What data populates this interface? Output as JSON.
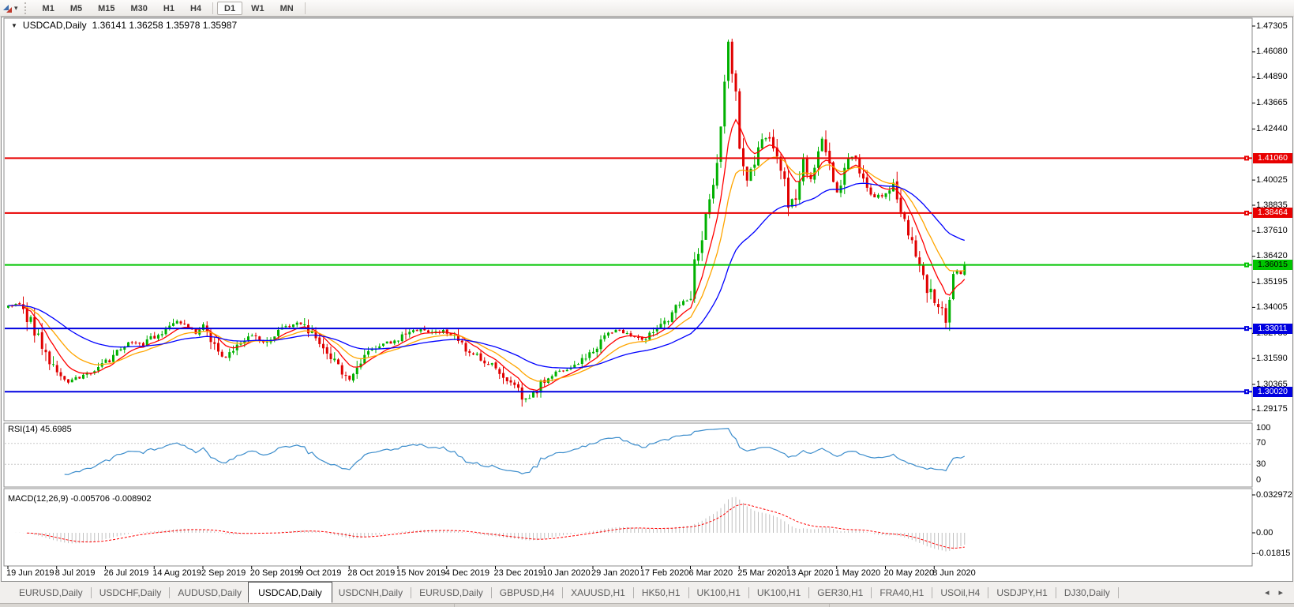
{
  "toolbar": {
    "dropdown_caret": "▾",
    "timeframes": [
      "M1",
      "M5",
      "M15",
      "M30",
      "H1",
      "H4",
      "D1",
      "W1",
      "MN"
    ],
    "active_timeframe": "D1",
    "separators_after": [
      "H4",
      "MN"
    ]
  },
  "chart": {
    "menu_icon": "▼",
    "header_symbol": "USDCAD,Daily",
    "header_ohlc": "1.36141 1.36258 1.35978 1.35987"
  },
  "chart_data": {
    "type": "candlestick",
    "symbol": "USDCAD",
    "period": "Daily",
    "ohlc": {
      "open": 1.36141,
      "high": 1.36258,
      "low": 1.35978,
      "close": 1.35987
    },
    "price_axis": {
      "ticks": [
        "1.47305",
        "1.46080",
        "1.44890",
        "1.43665",
        "1.42440",
        "1.40025",
        "1.38835",
        "1.37610",
        "1.36420",
        "1.35195",
        "1.34005",
        "1.32780",
        "1.31590",
        "1.30365",
        "1.29175"
      ]
    },
    "levels": [
      {
        "price": 1.4106,
        "label": "1.41060",
        "color": "#e80000",
        "text_color": "#ffffff"
      },
      {
        "price": 1.38464,
        "label": "1.38464",
        "color": "#e80000",
        "text_color": "#ffffff"
      },
      {
        "price": 1.36015,
        "label": "1.36015",
        "color": "#00c400",
        "text_color": "#000000"
      },
      {
        "price": 1.33011,
        "label": "1.33011",
        "color": "#0000e0",
        "text_color": "#ffffff"
      },
      {
        "price": 1.3002,
        "label": "1.30020",
        "color": "#0000e0",
        "text_color": "#ffffff"
      }
    ],
    "date_labels": [
      "19 Jun 2019",
      "8 Jul 2019",
      "26 Jul 2019",
      "14 Aug 2019",
      "2 Sep 2019",
      "20 Sep 2019",
      "9 Oct 2019",
      "28 Oct 2019",
      "15 Nov 2019",
      "4 Dec 2019",
      "23 Dec 2019",
      "10 Jan 2020",
      "29 Jan 2020",
      "17 Feb 2020",
      "6 Mar 2020",
      "25 Mar 2020",
      "13 Apr 2020",
      "1 May 2020",
      "20 May 2020",
      "8 Jun 2020"
    ],
    "candles_per_label": 13,
    "candle_count": 256,
    "close_path": [
      [
        0,
        1.3405
      ],
      [
        3,
        1.3425
      ],
      [
        6,
        1.333
      ],
      [
        10,
        1.317
      ],
      [
        13,
        1.3085
      ],
      [
        16,
        1.3048
      ],
      [
        19,
        1.307
      ],
      [
        23,
        1.3105
      ],
      [
        26,
        1.314
      ],
      [
        29,
        1.3205
      ],
      [
        32,
        1.3235
      ],
      [
        36,
        1.322
      ],
      [
        39,
        1.3265
      ],
      [
        42,
        1.329
      ],
      [
        45,
        1.333
      ],
      [
        48,
        1.33
      ],
      [
        50,
        1.327
      ],
      [
        52,
        1.332
      ],
      [
        55,
        1.323
      ],
      [
        58,
        1.3165
      ],
      [
        61,
        1.3215
      ],
      [
        65,
        1.3265
      ],
      [
        68,
        1.323
      ],
      [
        71,
        1.327
      ],
      [
        74,
        1.3305
      ],
      [
        78,
        1.333
      ],
      [
        81,
        1.327
      ],
      [
        84,
        1.321
      ],
      [
        87,
        1.314
      ],
      [
        91,
        1.306
      ],
      [
        94,
        1.313
      ],
      [
        97,
        1.32
      ],
      [
        100,
        1.323
      ],
      [
        104,
        1.324
      ],
      [
        107,
        1.329
      ],
      [
        110,
        1.33
      ],
      [
        113,
        1.328
      ],
      [
        116,
        1.329
      ],
      [
        119,
        1.327
      ],
      [
        122,
        1.32
      ],
      [
        125,
        1.317
      ],
      [
        128,
        1.3135
      ],
      [
        130,
        1.312
      ],
      [
        133,
        1.306
      ],
      [
        136,
        1.301
      ],
      [
        138,
        1.2965
      ],
      [
        141,
        1.301
      ],
      [
        143,
        1.3055
      ],
      [
        146,
        1.309
      ],
      [
        149,
        1.3105
      ],
      [
        152,
        1.314
      ],
      [
        156,
        1.32
      ],
      [
        159,
        1.327
      ],
      [
        162,
        1.329
      ],
      [
        165,
        1.328
      ],
      [
        169,
        1.3245
      ],
      [
        172,
        1.328
      ],
      [
        175,
        1.333
      ],
      [
        178,
        1.34
      ],
      [
        180,
        1.343
      ],
      [
        182,
        1.342
      ],
      [
        183,
        1.36
      ],
      [
        185,
        1.374
      ],
      [
        187,
        1.389
      ],
      [
        188,
        1.398
      ],
      [
        190,
        1.424
      ],
      [
        191,
        1.445
      ],
      [
        192,
        1.463
      ],
      [
        193,
        1.452
      ],
      [
        194,
        1.444
      ],
      [
        195,
        1.418
      ],
      [
        197,
        1.402
      ],
      [
        199,
        1.408
      ],
      [
        201,
        1.42
      ],
      [
        203,
        1.418
      ],
      [
        205,
        1.409
      ],
      [
        207,
        1.399
      ],
      [
        208,
        1.387
      ],
      [
        210,
        1.392
      ],
      [
        212,
        1.408
      ],
      [
        214,
        1.401
      ],
      [
        216,
        1.413
      ],
      [
        217,
        1.42
      ],
      [
        219,
        1.408
      ],
      [
        221,
        1.395
      ],
      [
        223,
        1.406
      ],
      [
        225,
        1.412
      ],
      [
        227,
        1.405
      ],
      [
        229,
        1.396
      ],
      [
        231,
        1.393
      ],
      [
        234,
        1.393
      ],
      [
        236,
        1.399
      ],
      [
        238,
        1.385
      ],
      [
        240,
        1.377
      ],
      [
        242,
        1.367
      ],
      [
        243,
        1.357
      ],
      [
        245,
        1.35
      ],
      [
        247,
        1.342
      ],
      [
        249,
        1.337
      ],
      [
        250,
        1.334
      ],
      [
        251,
        1.341
      ],
      [
        252,
        1.355
      ],
      [
        253,
        1.358
      ],
      [
        254,
        1.356
      ],
      [
        255,
        1.35987
      ]
    ],
    "colors": {
      "up": "#00b000",
      "down": "#e00000",
      "ma_fast": "#ff0000",
      "ma_mid": "#ffa500",
      "ma_slow": "#0000ff",
      "rsi_line": "#3c8dcc",
      "macd_histogram": "#c0c0c0",
      "macd_signal": "#ff0000"
    },
    "moving_averages": [
      {
        "period": 8,
        "color_key": "ma_fast"
      },
      {
        "period": 16,
        "color_key": "ma_mid"
      },
      {
        "period": 40,
        "color_key": "ma_slow"
      }
    ],
    "rsi_panel": {
      "label": "RSI(14) 45.6985",
      "period": 14,
      "value": 45.6985,
      "ticks": [
        "100",
        "70",
        "30",
        "0"
      ],
      "tick_values": [
        100,
        70,
        30,
        0
      ],
      "levels": [
        70,
        30
      ]
    },
    "macd_panel": {
      "label": "MACD(12,26,9) -0.005706 -0.008902",
      "fast": 12,
      "slow": 26,
      "signal_period": 9,
      "macd_value": -0.005706,
      "signal_value": -0.008902,
      "ticks": [
        "0.032972",
        "0.00",
        "-0.01815"
      ],
      "tick_values": [
        0.032972,
        0,
        -0.01815
      ]
    }
  },
  "tabs": {
    "items": [
      "EURUSD,Daily",
      "USDCHF,Daily",
      "AUDUSD,Daily",
      "USDCAD,Daily",
      "USDCNH,Daily",
      "EURUSD,Daily",
      "GBPUSD,H4",
      "XAUUSD,H1",
      "HK50,H1",
      "UK100,H1",
      "UK100,H1",
      "GER30,H1",
      "FRA40,H1",
      "USOil,H4",
      "USDJPY,H1",
      "DJ30,Daily"
    ],
    "active_index": 3,
    "scroll_left_icon": "◂",
    "scroll_right_icon": "▸"
  }
}
